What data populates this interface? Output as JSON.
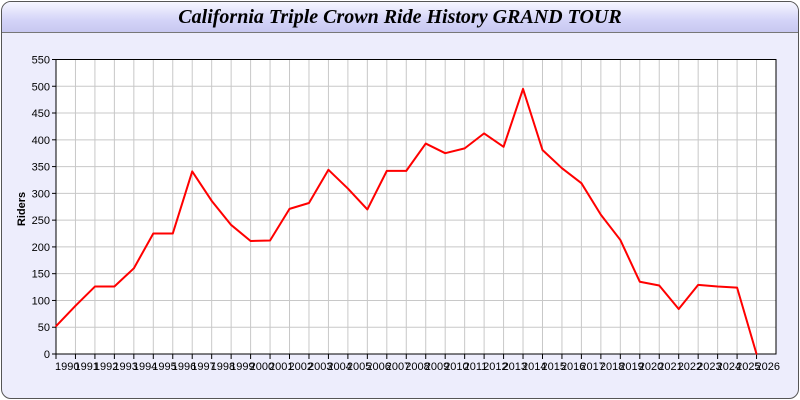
{
  "window": {
    "title": "California Triple Crown Ride History GRAND TOUR"
  },
  "chart_data": {
    "type": "line",
    "title": "California Triple Crown Ride History GRAND TOUR",
    "xlabel": "",
    "ylabel": "Riders",
    "xlim": [
      1990,
      2027
    ],
    "ylim": [
      0,
      550
    ],
    "yticks": [
      0,
      50,
      100,
      150,
      200,
      250,
      300,
      350,
      400,
      450,
      500,
      550
    ],
    "grid": true,
    "x": [
      1990,
      1991,
      1992,
      1993,
      1994,
      1995,
      1996,
      1997,
      1998,
      1999,
      2000,
      2001,
      2002,
      2003,
      2004,
      2005,
      2006,
      2007,
      2008,
      2009,
      2010,
      2011,
      2012,
      2013,
      2014,
      2015,
      2016,
      2017,
      2018,
      2019,
      2020,
      2021,
      2022,
      2023,
      2024,
      2025,
      2026
    ],
    "series": [
      {
        "color": "#ff0000",
        "values": [
          52,
          90,
          126,
          126,
          160,
          225,
          225,
          341,
          286,
          241,
          211,
          212,
          271,
          282,
          344,
          309,
          270,
          342,
          342,
          393,
          375,
          384,
          412,
          387,
          495,
          381,
          347,
          319,
          260,
          213,
          135,
          128,
          84,
          129,
          126,
          124,
          0
        ]
      }
    ]
  }
}
